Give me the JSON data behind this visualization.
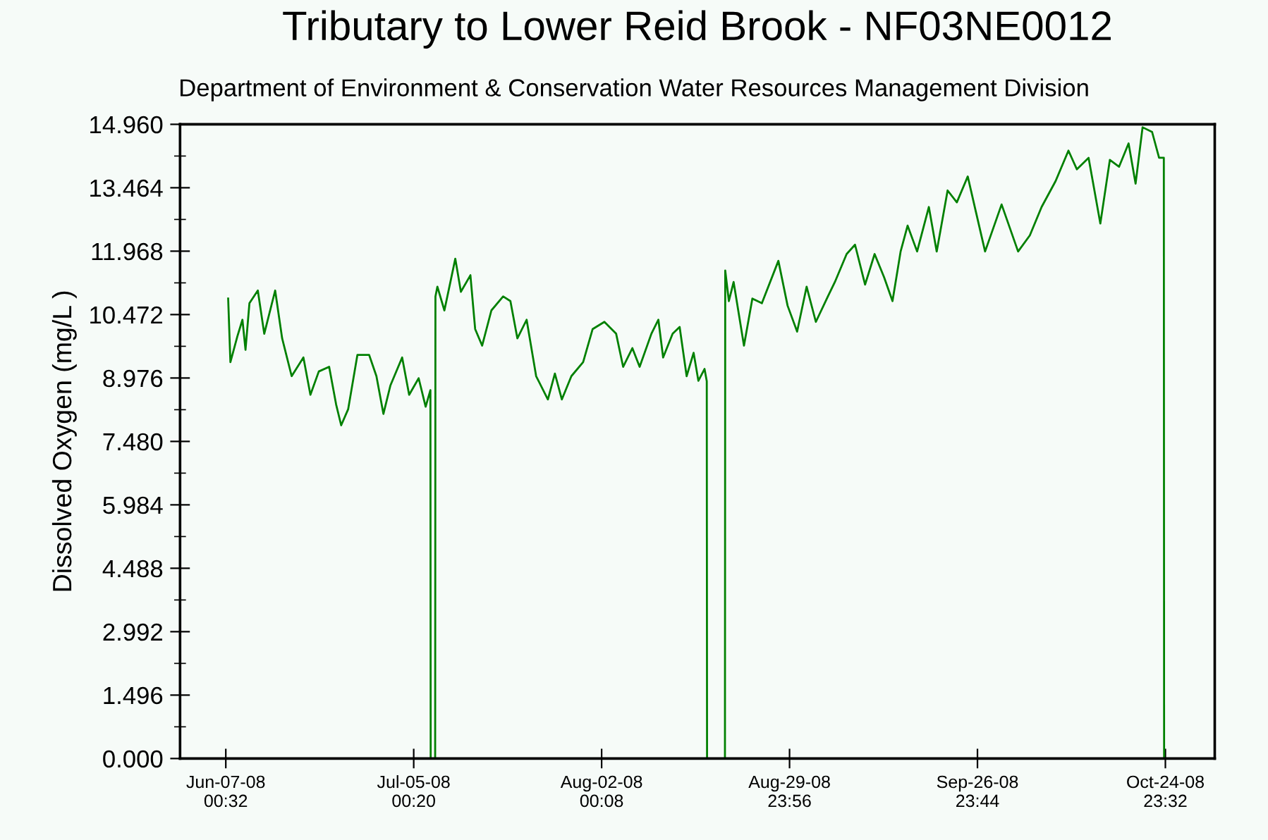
{
  "chart_data": {
    "type": "line",
    "title": "Tributary to Lower Reid Brook - NF03NE0012",
    "subtitle": "Department of Environment & Conservation Water Resources Management Division",
    "ylabel": "Dissolved Oxygen (mg/L )",
    "x": [
      "2008-06-07T09:00",
      "2008-06-07T17:00",
      "2008-06-08T18:00",
      "2008-06-09T12:00",
      "2008-06-09T23:00",
      "2008-06-10T13:00",
      "2008-06-11T19:00",
      "2008-06-12T18:00",
      "2008-06-14T09:00",
      "2008-06-15T10:00",
      "2008-06-16T20:00",
      "2008-06-18T14:00",
      "2008-06-19T15:00",
      "2008-06-20T21:00",
      "2008-06-22T10:00",
      "2008-06-23T11:00",
      "2008-06-24T05:00",
      "2008-06-25T06:00",
      "2008-06-26T15:00",
      "2008-06-28T09:00",
      "2008-06-29T11:00",
      "2008-06-30T12:00",
      "2008-07-01T13:00",
      "2008-07-03T07:00",
      "2008-07-04T08:00",
      "2008-07-05T18:00",
      "2008-07-06T19:00",
      "2008-07-07T12:00",
      "2008-07-07T13:00",
      "2008-07-08T05:00",
      "2008-07-08T06:00",
      "2008-07-08T13:00",
      "2008-07-09T14:00",
      "2008-07-11T05:00",
      "2008-07-12T01:00",
      "2008-07-13T11:00",
      "2008-07-14T04:00",
      "2008-07-15T05:00",
      "2008-07-16T14:00",
      "2008-07-18T08:00",
      "2008-07-19T10:00",
      "2008-07-20T11:00",
      "2008-07-21T20:00",
      "2008-07-23T06:00",
      "2008-07-25T00:00",
      "2008-07-26T01:00",
      "2008-07-27T02:00",
      "2008-07-28T12:00",
      "2008-07-30T06:00",
      "2008-07-31T16:00",
      "2008-08-02T10:00",
      "2008-08-04T04:00",
      "2008-08-05T05:00",
      "2008-08-06T14:00",
      "2008-08-07T16:00",
      "2008-08-09T10:00",
      "2008-08-10T11:00",
      "2008-08-11T04:00",
      "2008-08-12T14:00",
      "2008-08-13T15:00",
      "2008-08-14T16:00",
      "2008-08-15T17:00",
      "2008-08-16T10:00",
      "2008-08-17T08:00",
      "2008-08-17T16:00",
      "2008-08-17T17:00",
      "2008-08-20T09:00",
      "2008-08-20T10:00",
      "2008-08-20T23:00",
      "2008-08-21T16:00",
      "2008-08-23T05:00",
      "2008-08-24T11:00",
      "2008-08-25T21:00",
      "2008-08-28T08:00",
      "2008-08-29T17:00",
      "2008-08-31T03:00",
      "2008-09-01T13:00",
      "2008-09-02T22:00",
      "2008-09-04T17:00",
      "2008-09-05T18:00",
      "2008-09-07T12:00",
      "2008-09-08T18:00",
      "2008-09-10T06:00",
      "2008-09-11T16:00",
      "2008-09-13T02:00",
      "2008-09-14T08:00",
      "2008-09-15T13:00",
      "2008-09-16T14:00",
      "2008-09-18T00:00",
      "2008-09-19T18:00",
      "2008-09-20T22:00",
      "2008-09-22T13:00",
      "2008-09-23T22:00",
      "2008-09-25T13:00",
      "2008-09-26T18:00",
      "2008-09-28T03:00",
      "2008-09-30T14:00",
      "2008-10-03T01:00",
      "2008-10-04T19:00",
      "2008-10-06T13:00",
      "2008-10-08T15:00",
      "2008-10-10T13:00",
      "2008-10-11T19:00",
      "2008-10-13T13:00",
      "2008-10-15T07:00",
      "2008-10-16T17:00",
      "2008-10-18T02:00",
      "2008-10-19T12:00",
      "2008-10-20T13:00",
      "2008-10-21T14:00",
      "2008-10-23T00:00",
      "2008-10-24T01:00",
      "2008-10-24T18:00",
      "2008-10-24T19:00"
    ],
    "series": [
      {
        "color": "#008000",
        "values": [
          10.85,
          9.35,
          9.96,
          10.35,
          9.64,
          10.74,
          11.04,
          10.02,
          11.04,
          9.91,
          9.02,
          9.46,
          8.58,
          9.13,
          9.24,
          8.35,
          7.86,
          8.24,
          9.52,
          9.52,
          9.02,
          8.13,
          8.8,
          9.46,
          8.58,
          8.97,
          8.3,
          8.69,
          0,
          0,
          10.9,
          11.13,
          10.57,
          11.79,
          11.01,
          11.4,
          10.13,
          9.74,
          10.57,
          10.9,
          10.79,
          9.91,
          10.35,
          9.02,
          8.47,
          9.08,
          8.47,
          9.02,
          9.35,
          10.13,
          10.3,
          10.02,
          9.24,
          9.68,
          9.24,
          10.02,
          10.35,
          9.46,
          10.02,
          10.18,
          9.02,
          9.57,
          8.91,
          9.19,
          8.9,
          0,
          0,
          11.51,
          10.79,
          11.24,
          9.74,
          10.85,
          10.74,
          11.74,
          10.68,
          10.07,
          11.13,
          10.3,
          10.9,
          11.24,
          11.9,
          12.12,
          11.18,
          11.9,
          11.35,
          10.79,
          11.96,
          12.57,
          11.96,
          13.01,
          11.96,
          13.4,
          13.12,
          13.73,
          12.9,
          11.96,
          13.07,
          11.96,
          12.34,
          13.01,
          13.62,
          14.34,
          13.9,
          14.17,
          12.62,
          14.12,
          13.96,
          14.51,
          13.56,
          14.89,
          14.78,
          14.17,
          14.17,
          0
        ]
      }
    ],
    "xlim": [
      "2008-05-31T05:00",
      "2008-11-01T08:00"
    ],
    "xticks": [
      {
        "value": "2008-06-07T00:32",
        "label": "Jun-07-08\n00:32"
      },
      {
        "value": "2008-07-05T00:20",
        "label": "Jul-05-08\n00:20"
      },
      {
        "value": "2008-08-02T00:08",
        "label": "Aug-02-08\n00:08"
      },
      {
        "value": "2008-08-29T23:56",
        "label": "Aug-29-08\n23:56"
      },
      {
        "value": "2008-09-26T23:44",
        "label": "Sep-26-08\n23:44"
      },
      {
        "value": "2008-10-24T23:32",
        "label": "Oct-24-08\n23:32"
      }
    ],
    "ylim": [
      0,
      14.96
    ],
    "yticks": [
      {
        "value": 0,
        "label": "0.000"
      },
      1.496,
      2.992,
      4.488,
      5.984,
      {
        "value": 7.48,
        "label": "7.480"
      },
      8.976,
      10.472,
      11.968,
      13.464,
      {
        "value": 14.96,
        "label": "14.960"
      }
    ],
    "grid": false,
    "legend": false
  }
}
